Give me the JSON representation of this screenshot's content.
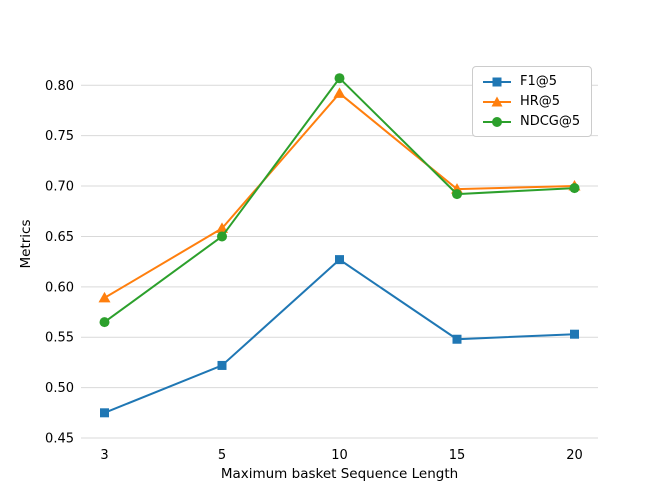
{
  "figure": {
    "background_color": "#ffffff"
  },
  "chart_data": {
    "type": "line",
    "title": "",
    "xlabel": "Maximum basket Sequence Length",
    "ylabel": "Metrics",
    "x_scale": "categorical",
    "categories": [
      "3",
      "5",
      "10",
      "15",
      "20"
    ],
    "ylim": [
      0.45,
      0.835
    ],
    "yticks": [
      0.45,
      0.5,
      0.55,
      0.6,
      0.65,
      0.7,
      0.75,
      0.8
    ],
    "ytick_labels": [
      "0.45",
      "0.50",
      "0.55",
      "0.60",
      "0.65",
      "0.70",
      "0.75",
      "0.80"
    ],
    "grid": "horizontal gridlines only, no axis spines",
    "gridline_color": "#d9d9d9",
    "legend_position": "upper right",
    "series": [
      {
        "name": "F1@5",
        "color": "#1f77b4",
        "marker": "square",
        "values": [
          0.475,
          0.522,
          0.627,
          0.548,
          0.553
        ]
      },
      {
        "name": "HR@5",
        "color": "#ff7f0e",
        "marker": "triangle-up",
        "values": [
          0.589,
          0.658,
          0.792,
          0.697,
          0.7
        ]
      },
      {
        "name": "NDCG@5",
        "color": "#2ca02c",
        "marker": "circle",
        "values": [
          0.565,
          0.65,
          0.807,
          0.692,
          0.698
        ]
      }
    ]
  }
}
